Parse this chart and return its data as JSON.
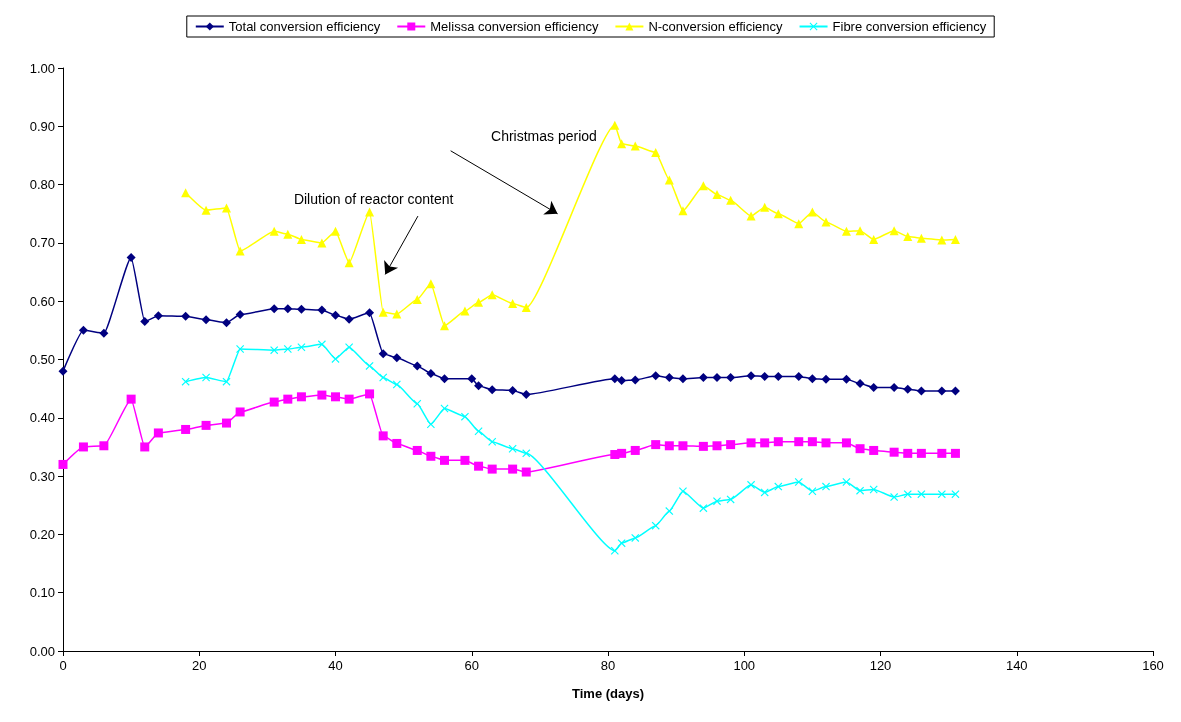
{
  "chart_data": {
    "type": "line",
    "xlabel": "Time (days)",
    "legend": "top",
    "grid": false,
    "xlim": [
      0,
      160
    ],
    "xticks": [
      0,
      20,
      40,
      60,
      80,
      100,
      120,
      140,
      160
    ],
    "ylim": [
      0,
      1
    ],
    "yticks": [
      {
        "value": 0,
        "label": "0.00"
      },
      {
        "value": 0.1,
        "label": "0.10"
      },
      {
        "value": 0.2,
        "label": "0.20"
      },
      {
        "value": 0.3,
        "label": "0.30"
      },
      {
        "value": 0.4,
        "label": "0.40"
      },
      {
        "value": 0.5,
        "label": "0.50"
      },
      {
        "value": 0.6,
        "label": "0.60"
      },
      {
        "value": 0.7,
        "label": "0.70"
      },
      {
        "value": 0.8,
        "label": "0.80"
      },
      {
        "value": 0.9,
        "label": "0.90"
      },
      {
        "value": 1,
        "label": "1.00"
      }
    ],
    "annotations": [
      "Dilution of reactor content",
      "Christmas period"
    ],
    "series": [
      {
        "name": "Total conversion efficiency",
        "color": "#000080",
        "marker": "diamond",
        "x": [
          0,
          3,
          6,
          10,
          12,
          14,
          18,
          21,
          24,
          26,
          31,
          33,
          35,
          38,
          40,
          42,
          45,
          47,
          49,
          52,
          54,
          56,
          60,
          61,
          63,
          66,
          68,
          81,
          82,
          84,
          87,
          89,
          91,
          94,
          96,
          98,
          101,
          103,
          105,
          108,
          110,
          112,
          115,
          117,
          119,
          122,
          124,
          126,
          129,
          131
        ],
        "values": [
          0.48,
          0.55,
          0.545,
          0.675,
          0.565,
          0.575,
          0.574,
          0.568,
          0.563,
          0.577,
          0.587,
          0.587,
          0.586,
          0.585,
          0.576,
          0.569,
          0.58,
          0.51,
          0.503,
          0.489,
          0.476,
          0.467,
          0.467,
          0.455,
          0.448,
          0.447,
          0.44,
          0.467,
          0.464,
          0.465,
          0.472,
          0.469,
          0.467,
          0.469,
          0.469,
          0.469,
          0.472,
          0.471,
          0.471,
          0.471,
          0.467,
          0.466,
          0.466,
          0.459,
          0.452,
          0.452,
          0.449,
          0.446,
          0.446,
          0.446
        ]
      },
      {
        "name": "Melissa conversion efficiency",
        "color": "#ff00ff",
        "marker": "square",
        "x": [
          0,
          3,
          6,
          10,
          12,
          14,
          18,
          21,
          24,
          26,
          31,
          33,
          35,
          38,
          40,
          42,
          45,
          47,
          49,
          52,
          54,
          56,
          59,
          61,
          63,
          66,
          68,
          81,
          82,
          84,
          87,
          89,
          91,
          94,
          96,
          98,
          101,
          103,
          105,
          108,
          110,
          112,
          115,
          117,
          119,
          122,
          124,
          126,
          129,
          131
        ],
        "values": [
          0.32,
          0.35,
          0.352,
          0.432,
          0.35,
          0.374,
          0.38,
          0.387,
          0.391,
          0.41,
          0.427,
          0.432,
          0.436,
          0.439,
          0.436,
          0.432,
          0.441,
          0.369,
          0.356,
          0.344,
          0.334,
          0.327,
          0.327,
          0.317,
          0.312,
          0.312,
          0.307,
          0.337,
          0.339,
          0.344,
          0.354,
          0.352,
          0.352,
          0.351,
          0.352,
          0.354,
          0.357,
          0.357,
          0.359,
          0.359,
          0.359,
          0.357,
          0.357,
          0.347,
          0.344,
          0.341,
          0.339,
          0.339,
          0.339,
          0.339
        ]
      },
      {
        "name": "N-conversion efficiency",
        "color": "#ffff00",
        "marker": "triangle",
        "x": [
          18,
          21,
          24,
          26,
          31,
          33,
          35,
          38,
          40,
          42,
          45,
          47,
          49,
          52,
          54,
          56,
          59,
          61,
          63,
          66,
          68,
          81,
          82,
          84,
          87,
          89,
          91,
          94,
          96,
          98,
          101,
          103,
          105,
          108,
          110,
          112,
          115,
          117,
          119,
          122,
          124,
          126,
          129,
          131
        ],
        "values": [
          0.786,
          0.756,
          0.76,
          0.686,
          0.72,
          0.715,
          0.706,
          0.7,
          0.72,
          0.666,
          0.753,
          0.581,
          0.578,
          0.603,
          0.63,
          0.558,
          0.583,
          0.598,
          0.611,
          0.596,
          0.589,
          0.902,
          0.87,
          0.866,
          0.855,
          0.808,
          0.755,
          0.798,
          0.783,
          0.773,
          0.746,
          0.761,
          0.75,
          0.733,
          0.753,
          0.736,
          0.72,
          0.721,
          0.706,
          0.721,
          0.711,
          0.708,
          0.705,
          0.706
        ]
      },
      {
        "name": "Fibre conversion efficiency",
        "color": "#00ffff",
        "marker": "cross",
        "x": [
          18,
          21,
          24,
          26,
          31,
          33,
          35,
          38,
          40,
          42,
          45,
          47,
          49,
          52,
          54,
          56,
          59,
          61,
          63,
          66,
          68,
          81,
          82,
          84,
          87,
          89,
          91,
          94,
          96,
          98,
          101,
          103,
          105,
          108,
          110,
          112,
          115,
          117,
          119,
          122,
          124,
          126,
          129,
          131
        ],
        "values": [
          0.462,
          0.469,
          0.462,
          0.518,
          0.516,
          0.518,
          0.521,
          0.526,
          0.501,
          0.521,
          0.489,
          0.469,
          0.457,
          0.424,
          0.389,
          0.416,
          0.402,
          0.377,
          0.359,
          0.347,
          0.339,
          0.172,
          0.185,
          0.194,
          0.215,
          0.24,
          0.274,
          0.245,
          0.257,
          0.26,
          0.285,
          0.272,
          0.282,
          0.29,
          0.274,
          0.282,
          0.29,
          0.275,
          0.277,
          0.264,
          0.269,
          0.269,
          0.269,
          0.269
        ]
      }
    ]
  }
}
